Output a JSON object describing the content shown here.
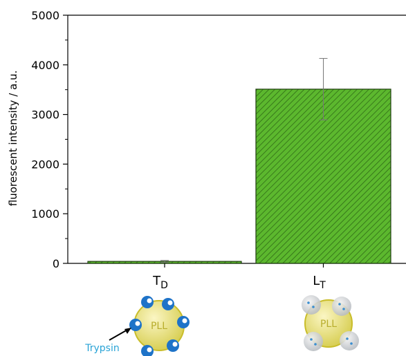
{
  "chart_data": {
    "type": "bar",
    "y_label": "fluorescent intensity / a.u.",
    "categories": [
      "T",
      "L"
    ],
    "category_subscripts": [
      "D",
      "T"
    ],
    "values": [
      40,
      3510
    ],
    "errors": [
      20,
      620
    ],
    "color": "#5cb82e",
    "ylim": [
      0,
      5000
    ],
    "yticks": [
      0,
      1000,
      2000,
      3000,
      4000,
      5000
    ],
    "illustration_labels": {
      "core": "PLL",
      "enzyme": "Trypsin"
    }
  }
}
